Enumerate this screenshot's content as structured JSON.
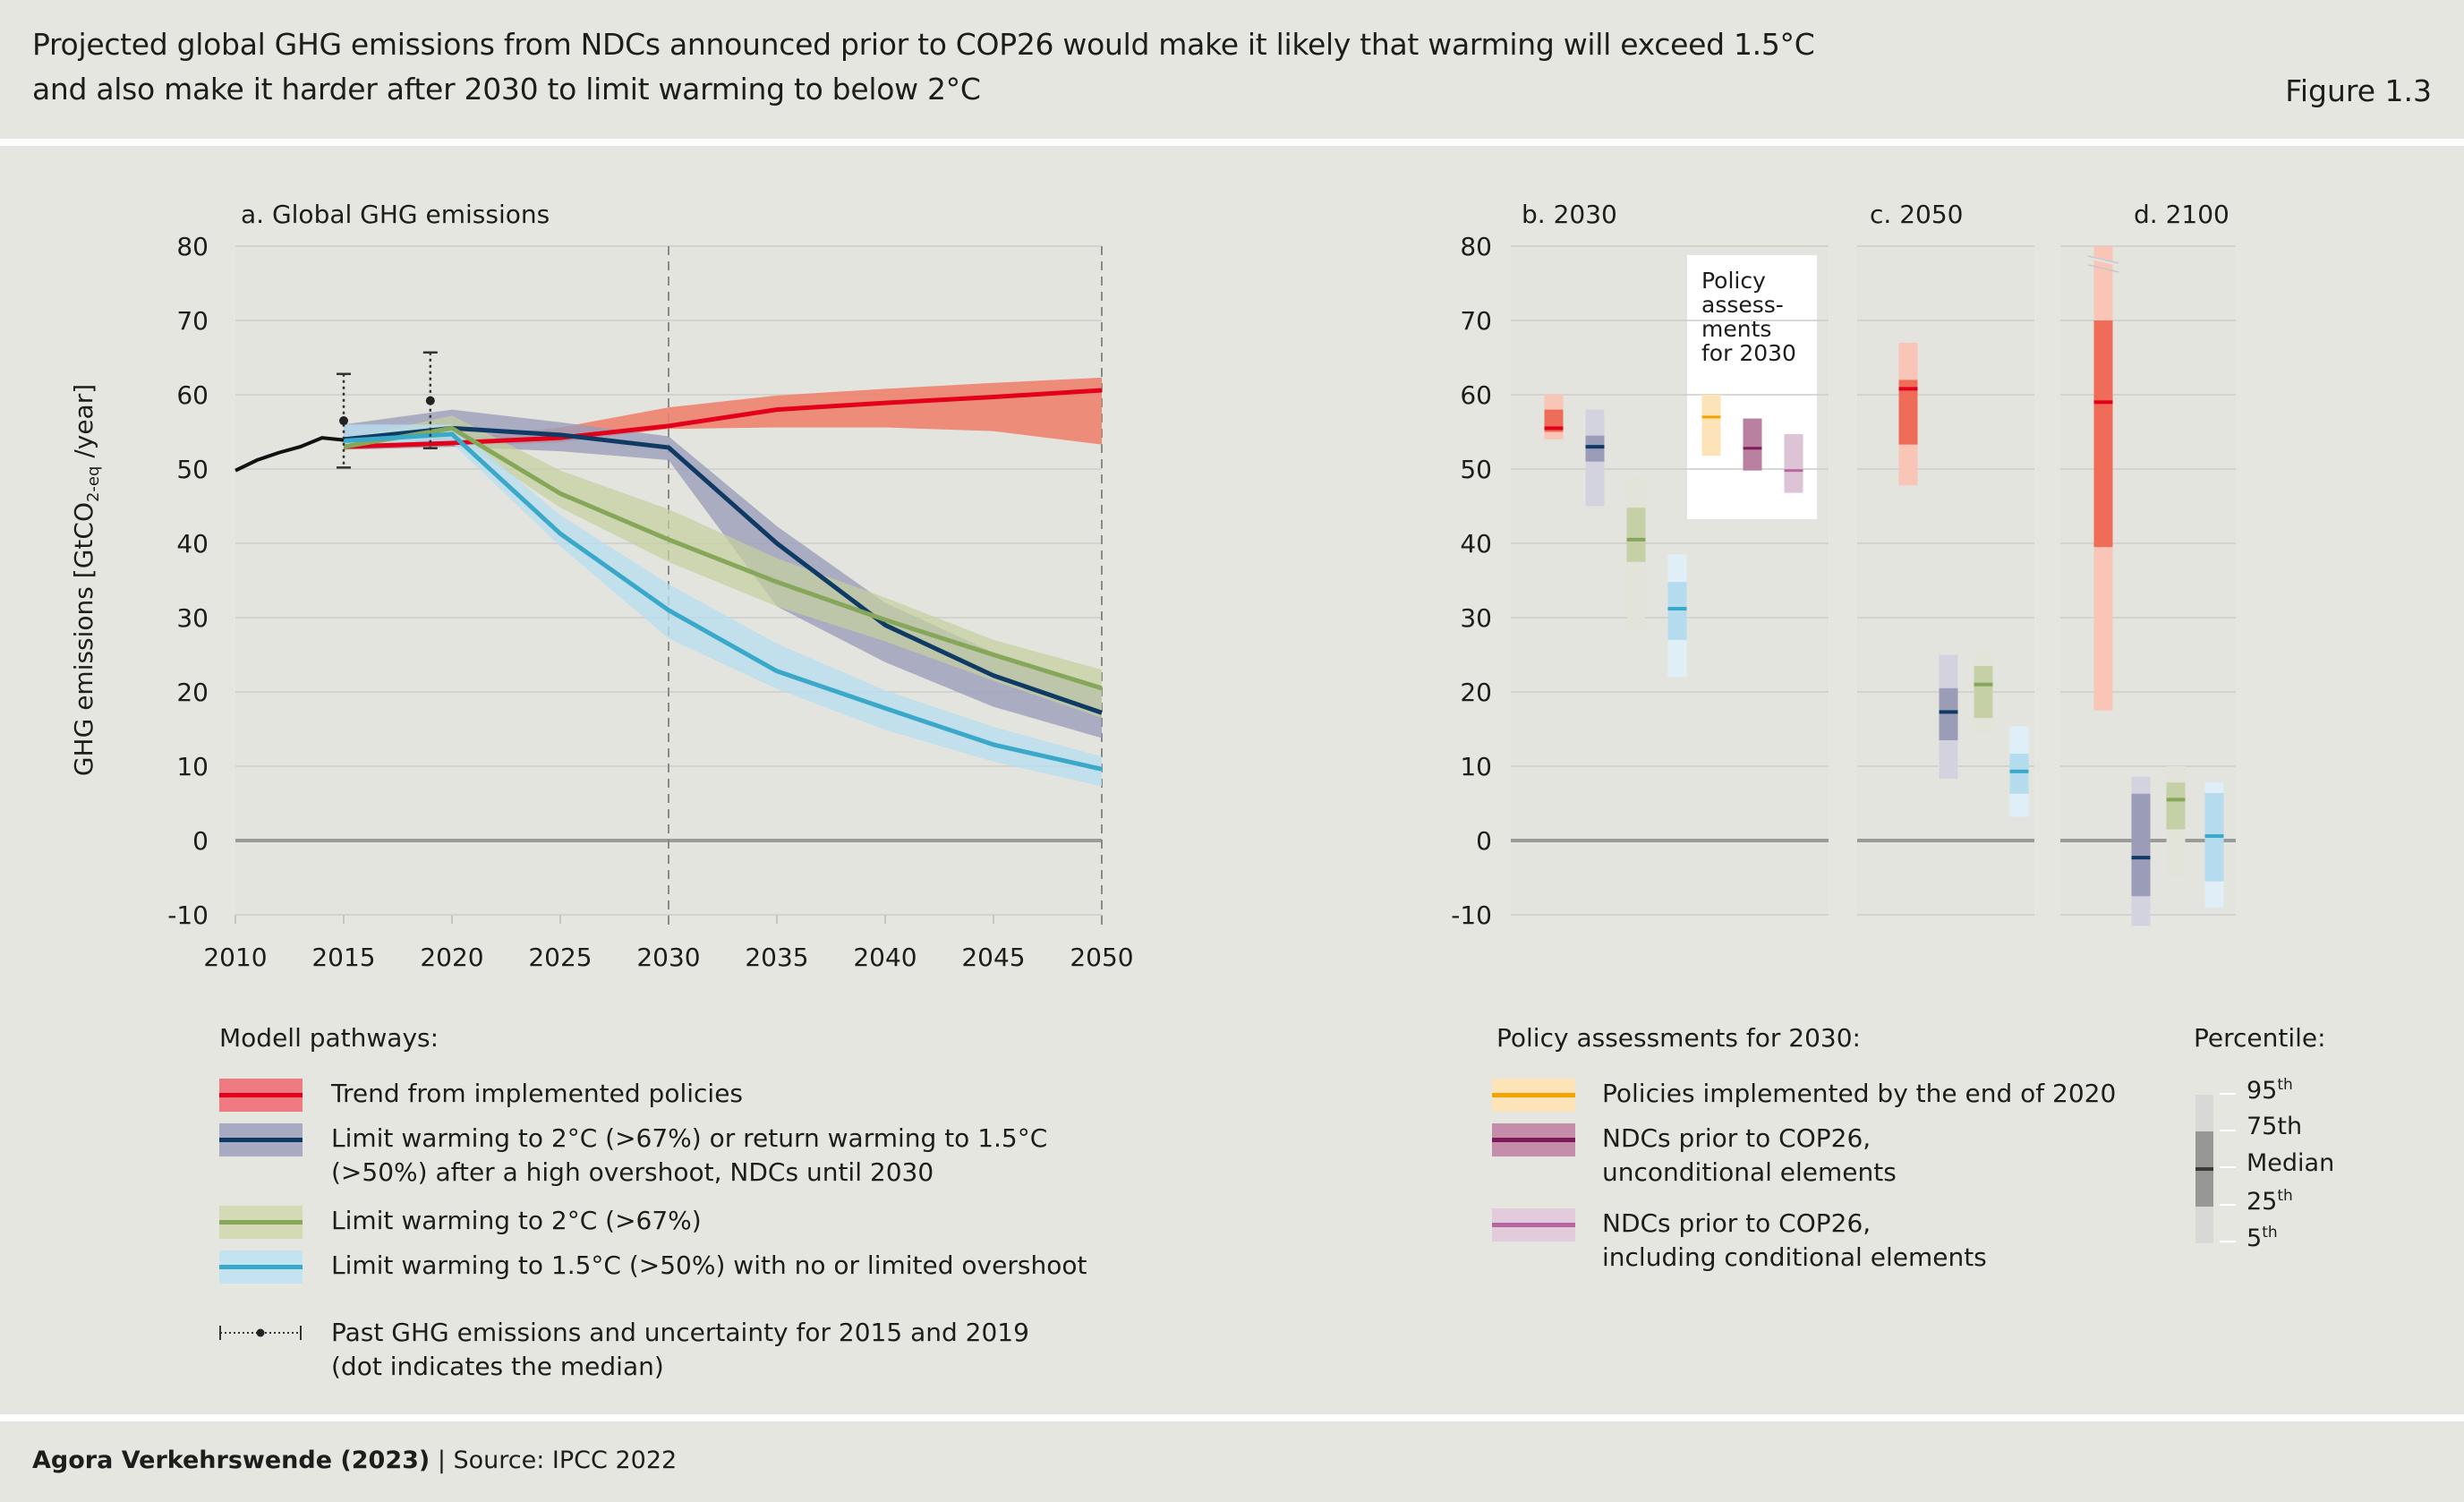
{
  "header": {
    "title_line1": "Projected global GHG emissions from NDCs announced prior to COP26 would make it likely that warming will exceed 1.5°C",
    "title_line2": "and also make it harder after 2030 to limit warming to below 2°C",
    "figure_label": "Figure 1.3"
  },
  "footer": {
    "publisher": "Agora Verkehrswende (2023)",
    "source": " | Source: IPCC 2022"
  },
  "colors": {
    "background": "#e6e6e1",
    "red_line": "#e3001b",
    "red_band": "#ef7f6c",
    "navy_line": "#0f3a64",
    "navy_band": "#9a9cb8",
    "green_line": "#86a65a",
    "green_band": "#c5d09f",
    "blue_line": "#3aa8c8",
    "blue_band": "#b8def0",
    "yellow_line": "#f5a300",
    "yellow_band": "#fde3b8",
    "purple_line": "#7e1a5a",
    "purple_band": "#b9809f",
    "pink_line": "#b767a0",
    "pink_band": "#dcc4d6"
  },
  "chart_data": [
    {
      "id": "a",
      "type": "area",
      "title": "a. Global GHG emissions",
      "xlabel": "",
      "ylabel": "GHG emissions [GtCO2-eq /year]",
      "ylabel_parts": {
        "pre": "GHG emissions [GtCO",
        "sub": "2-eq",
        "post": " /year]"
      },
      "xlim": [
        2010,
        2050
      ],
      "ylim": [
        -10,
        80
      ],
      "xticks": [
        2010,
        2015,
        2020,
        2025,
        2030,
        2035,
        2040,
        2045,
        2050
      ],
      "yticks": [
        -10,
        0,
        10,
        20,
        30,
        40,
        50,
        60,
        70,
        80
      ],
      "grid": true,
      "vlines": [
        2030,
        2050
      ],
      "historical": {
        "name": "Past GHG emissions",
        "x": [
          2010,
          2011,
          2012,
          2013,
          2014,
          2015
        ],
        "y": [
          49.8,
          51.2,
          52.2,
          53.0,
          54.2,
          53.9
        ]
      },
      "uncertainty": [
        {
          "year": 2015,
          "median": 56.5,
          "low": 50.2,
          "high": 62.8
        },
        {
          "year": 2019,
          "median": 59.2,
          "low": 52.8,
          "high": 65.7
        }
      ],
      "series": [
        {
          "key": "red",
          "name": "Trend from implemented policies",
          "x": [
            2015,
            2020,
            2025,
            2030,
            2035,
            2040,
            2045,
            2050
          ],
          "median": [
            53.0,
            53.5,
            54.2,
            55.8,
            58.0,
            58.9,
            59.7,
            60.6
          ],
          "low": [
            52.6,
            53.0,
            53.6,
            55.4,
            55.6,
            55.6,
            55.1,
            53.3
          ],
          "high": [
            53.4,
            54.0,
            55.6,
            58.3,
            59.9,
            60.8,
            61.6,
            62.3
          ]
        },
        {
          "key": "navy",
          "name": "Limit warming to 2°C (>67%) or return warming to 1.5°C (>50%) after a high overshoot, NDCs until 2030",
          "x": [
            2015,
            2020,
            2025,
            2030,
            2035,
            2040,
            2045,
            2050
          ],
          "median": [
            54.0,
            55.5,
            54.6,
            52.9,
            40.0,
            29.0,
            22.2,
            17.2
          ],
          "low": [
            52.6,
            53.0,
            52.4,
            51.2,
            31.5,
            24.0,
            18.0,
            13.8
          ],
          "high": [
            56.0,
            58.0,
            56.3,
            54.4,
            42.3,
            32.0,
            25.3,
            20.8
          ]
        },
        {
          "key": "green",
          "name": "Limit warming to 2°C (>67%)",
          "x": [
            2015,
            2020,
            2025,
            2030,
            2035,
            2040,
            2045,
            2050
          ],
          "median": [
            53.0,
            55.5,
            46.7,
            40.5,
            34.8,
            29.7,
            25.0,
            20.5
          ],
          "low": [
            52.5,
            54.5,
            44.8,
            37.5,
            31.5,
            26.8,
            21.5,
            16.5
          ],
          "high": [
            54.0,
            57.2,
            49.8,
            44.6,
            38.0,
            32.7,
            27.0,
            23.0
          ]
        },
        {
          "key": "blue",
          "name": "Limit warming to 1.5°C (>50%) with no or limited overshoot",
          "x": [
            2015,
            2020,
            2025,
            2030,
            2035,
            2040,
            2045,
            2050
          ],
          "median": [
            53.8,
            54.7,
            41.3,
            31.0,
            22.8,
            17.8,
            12.9,
            9.6
          ],
          "low": [
            52.8,
            53.5,
            39.6,
            27.2,
            20.4,
            14.9,
            10.6,
            7.3
          ],
          "high": [
            56.0,
            56.0,
            43.8,
            34.5,
            26.5,
            20.2,
            15.3,
            11.3
          ]
        }
      ]
    },
    {
      "id": "b",
      "type": "boxplot",
      "title": "b. 2030",
      "ylim": [
        -10,
        80
      ],
      "yticks": [
        -10,
        0,
        10,
        20,
        30,
        40,
        50,
        60,
        70,
        80
      ],
      "inset_label": [
        "Policy",
        "assess-",
        "ments",
        "for 2030"
      ],
      "boxes": [
        {
          "key": "red",
          "p5": 54,
          "p25": 55,
          "median": 55.5,
          "p75": 58,
          "p95": 60
        },
        {
          "key": "navy",
          "p5": 45,
          "p25": 51,
          "median": 53,
          "p75": 54.5,
          "p95": 58
        },
        {
          "key": "green",
          "p5": 28.5,
          "p25": 37.5,
          "median": 40.5,
          "p75": 44.8,
          "p95": 49
        },
        {
          "key": "blue",
          "p5": 22,
          "p25": 27,
          "median": 31.2,
          "p75": 34.8,
          "p95": 38.5
        },
        {
          "key": "yellow",
          "p5": 51.8,
          "median": 57,
          "p95": 60
        },
        {
          "key": "purple",
          "p5": 49.8,
          "median": 52.8,
          "p95": 56.8
        },
        {
          "key": "pink",
          "p5": 46.8,
          "median": 49.8,
          "p95": 54.7
        }
      ]
    },
    {
      "id": "c",
      "type": "boxplot",
      "title": "c. 2050",
      "ylim": [
        -10,
        80
      ],
      "boxes": [
        {
          "key": "red",
          "p5": 47.8,
          "p25": 53.3,
          "median": 60.8,
          "p75": 62,
          "p95": 67
        },
        {
          "key": "navy",
          "p5": 8.3,
          "p25": 13.5,
          "median": 17.3,
          "p75": 20.5,
          "p95": 25
        },
        {
          "key": "green",
          "p5": 14.5,
          "p25": 16.5,
          "median": 21,
          "p75": 23.5,
          "p95": 25.5
        },
        {
          "key": "blue",
          "p5": 3.2,
          "p25": 6.3,
          "median": 9.3,
          "p75": 11.7,
          "p95": 15.4
        }
      ]
    },
    {
      "id": "d",
      "type": "boxplot",
      "title": "d. 2100",
      "ylim": [
        -10,
        80
      ],
      "boxes": [
        {
          "key": "red",
          "p5": 17.5,
          "p25": 39.5,
          "median": 59,
          "p75": 70,
          "p95": 80,
          "p95_exceeds_axis": true
        },
        {
          "key": "navy",
          "p5": -11.5,
          "p25": -7.5,
          "median": -2.3,
          "p75": 6.3,
          "p95": 8.6
        },
        {
          "key": "green",
          "p5": -5,
          "p25": 1.5,
          "median": 5.5,
          "p75": 7.8,
          "p95": 10
        },
        {
          "key": "blue",
          "p5": -9,
          "p25": -5.5,
          "median": 0.6,
          "p75": 6.4,
          "p95": 7.8
        }
      ]
    }
  ],
  "legend_pathways": {
    "heading": "Modell pathways:",
    "items": [
      {
        "key": "red",
        "lines": [
          "Trend from implemented policies"
        ]
      },
      {
        "key": "navy",
        "lines": [
          "Limit warming to 2°C (>67%) or return warming to 1.5°C",
          "(>50%) after a high overshoot, NDCs until 2030"
        ]
      },
      {
        "key": "green",
        "lines": [
          "Limit warming to 2°C (>67%)"
        ]
      },
      {
        "key": "blue",
        "lines": [
          "Limit warming to 1.5°C (>50%) with no or limited overshoot"
        ]
      }
    ],
    "past": {
      "lines": [
        "Past GHG emissions and uncertainty for 2015 and 2019",
        "(dot indicates the median)"
      ]
    }
  },
  "legend_policy": {
    "heading": "Policy assessments for 2030:",
    "items": [
      {
        "key": "yellow",
        "lines": [
          "Policies implemented by the end of 2020"
        ]
      },
      {
        "key": "purple",
        "lines": [
          "NDCs prior to COP26,",
          "unconditional elements"
        ]
      },
      {
        "key": "pink",
        "lines": [
          "NDCs prior to COP26,",
          "including conditional elements"
        ]
      }
    ]
  },
  "legend_percentile": {
    "heading": "Percentile:",
    "labels": [
      {
        "num": "95",
        "sup": "th"
      },
      {
        "num": "75th",
        "sup": ""
      },
      {
        "num": "Median",
        "sup": ""
      },
      {
        "num": "25",
        "sup": "th"
      },
      {
        "num": "5",
        "sup": "th"
      }
    ]
  }
}
